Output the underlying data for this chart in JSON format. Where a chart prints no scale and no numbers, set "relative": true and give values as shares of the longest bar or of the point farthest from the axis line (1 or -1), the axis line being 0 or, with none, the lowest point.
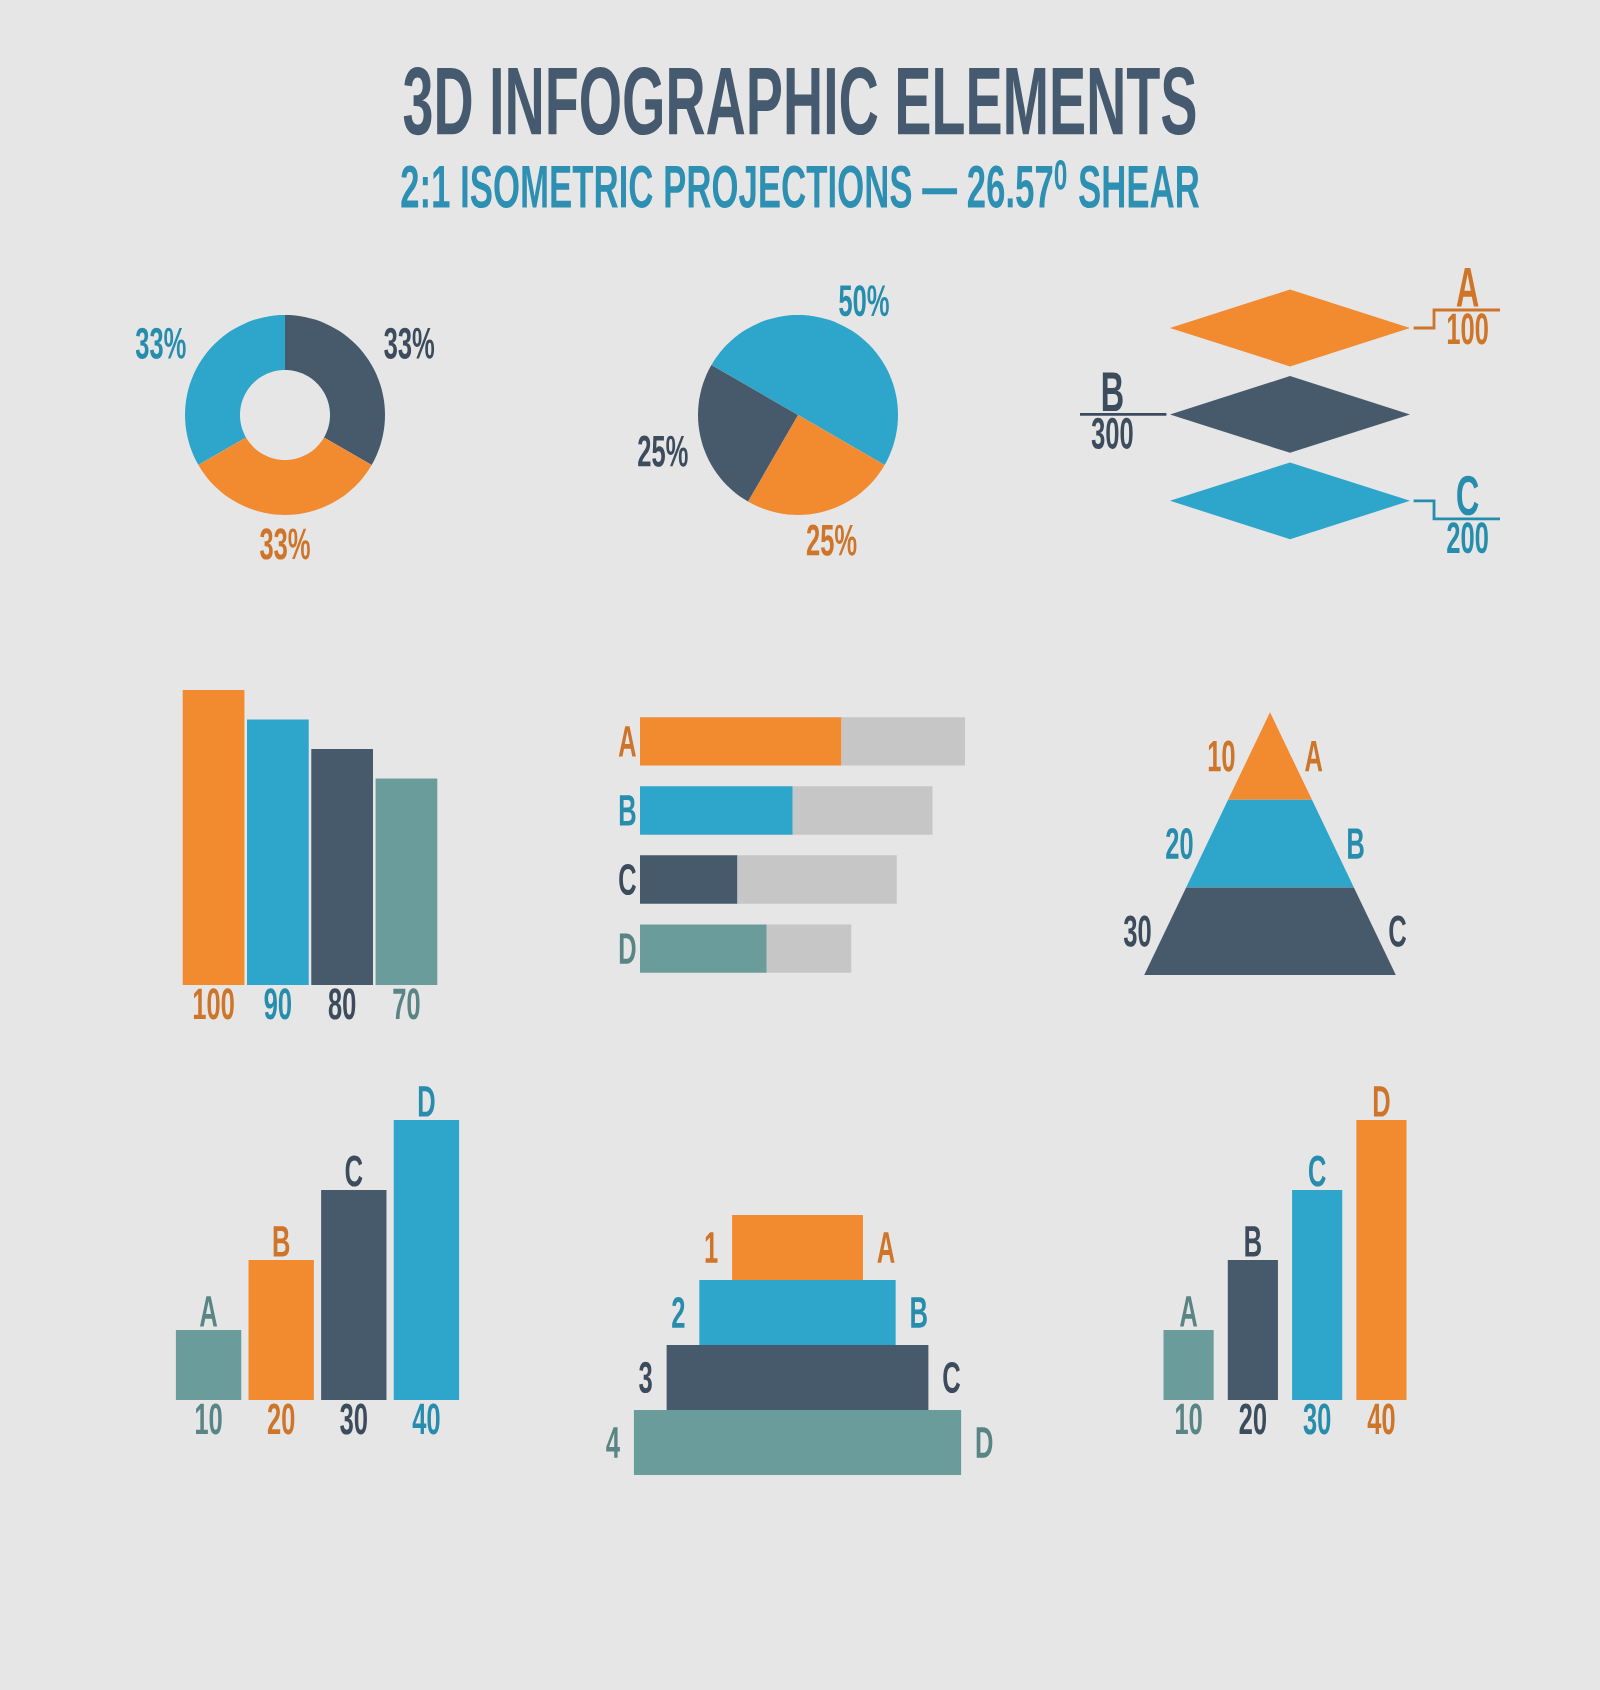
{
  "chart_data": [
    {
      "type": "other",
      "title": "3D INFOGRAPHIC ELEMENTS",
      "subtitle": "2:1 ISOMETRIC PROJECTIONS — 26.57$^{0}$ SHEAR"
    },
    {
      "type": "donut",
      "categories": [
        null,
        null,
        null
      ],
      "values": [
        33,
        33,
        33
      ],
      "colors": [
        "#2ea6cb",
        "#475a6c",
        "#f28a30"
      ],
      "value_labels": [
        "33%",
        "33%",
        "33%"
      ]
    },
    {
      "type": "pie",
      "categories": [
        null,
        null,
        null
      ],
      "values": [
        50,
        25,
        25
      ],
      "colors": [
        "#2ea6cb",
        "#f28a30",
        "#475a6c"
      ],
      "value_labels": [
        "50%",
        "25%",
        "25%"
      ]
    },
    {
      "type": "other",
      "categories": [
        "A",
        "B",
        "C"
      ],
      "values": [
        100,
        300,
        200
      ],
      "colors": [
        "#f28a30",
        "#475a6c",
        "#2ea6cb"
      ],
      "data_labels": true
    },
    {
      "type": "bar",
      "categories": [
        null,
        null,
        null,
        null
      ],
      "values": [
        100,
        90,
        80,
        70
      ],
      "colors": [
        "#f28a30",
        "#2ea6cb",
        "#475a6c",
        "#6a9c9c"
      ],
      "data_labels": true
    },
    {
      "type": "bar",
      "orientation": "horizontal",
      "stacked": true,
      "relative": true,
      "categories": [
        "A",
        "B",
        "C",
        "D"
      ],
      "series": [
        {
          "colors": [
            "#f28a30",
            "#2ea6cb",
            "#475a6c",
            "#6a9c9c"
          ],
          "values": [
            0.62,
            0.47,
            0.3,
            0.39
          ]
        },
        {
          "color": "#c6c6c6",
          "values": [
            0.38,
            0.43,
            0.49,
            0.26
          ]
        }
      ]
    },
    {
      "type": "other",
      "categories": [
        "A",
        "B",
        "C"
      ],
      "values": [
        10,
        20,
        30
      ],
      "colors": [
        "#f28a30",
        "#2ea6cb",
        "#475a6c"
      ],
      "data_labels": true
    },
    {
      "type": "bar",
      "categories": [
        "A",
        "B",
        "C",
        "D"
      ],
      "values": [
        10,
        20,
        30,
        40
      ],
      "colors": [
        "#6a9c9c",
        "#f28a30",
        "#475a6c",
        "#2ea6cb"
      ],
      "data_labels": true
    },
    {
      "type": "other",
      "categories": [
        "A",
        "B",
        "C",
        "D"
      ],
      "values": [
        1,
        2,
        3,
        4
      ],
      "colors": [
        "#f28a30",
        "#2ea6cb",
        "#475a6c",
        "#6a9c9c"
      ],
      "data_labels": true
    },
    {
      "type": "bar",
      "categories": [
        "A",
        "B",
        "C",
        "D"
      ],
      "values": [
        10,
        20,
        30,
        40
      ],
      "colors": [
        "#6a9c9c",
        "#475a6c",
        "#2ea6cb",
        "#f28a30"
      ],
      "data_labels": true
    }
  ]
}
